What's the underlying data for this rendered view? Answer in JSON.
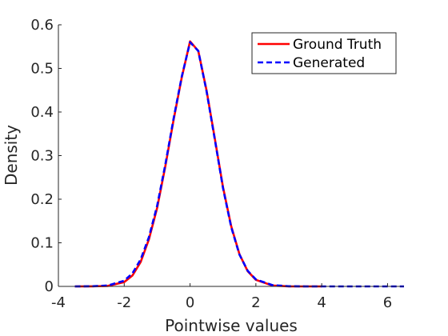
{
  "chart_data": {
    "type": "line",
    "xlabel": "Pointwise values",
    "ylabel": "Density",
    "xlim": [
      -4,
      6.5
    ],
    "ylim": [
      0,
      0.6
    ],
    "xticks": [
      -4,
      -2,
      0,
      2,
      4,
      6
    ],
    "yticks": [
      0,
      0.1,
      0.2,
      0.3,
      0.4,
      0.5,
      0.6
    ],
    "grid": false,
    "legend_position": "top-right",
    "series": [
      {
        "name": "Ground Truth",
        "color": "#ff0000",
        "style": "solid",
        "x": [
          -3.5,
          -3.0,
          -2.5,
          -2.0,
          -1.75,
          -1.5,
          -1.25,
          -1.0,
          -0.75,
          -0.5,
          -0.25,
          0.0,
          0.25,
          0.5,
          0.75,
          1.0,
          1.25,
          1.5,
          1.75,
          2.0,
          2.5,
          3.0,
          3.5,
          4.0
        ],
        "y": [
          0.0,
          0.0001,
          0.001,
          0.01,
          0.025,
          0.056,
          0.108,
          0.18,
          0.276,
          0.382,
          0.48,
          0.562,
          0.54,
          0.45,
          0.34,
          0.228,
          0.138,
          0.074,
          0.035,
          0.015,
          0.002,
          0.0002,
          0.0,
          0.0
        ]
      },
      {
        "name": "Generated",
        "color": "#0000ff",
        "style": "dashed",
        "x": [
          -3.5,
          -3.0,
          -2.5,
          -2.0,
          -1.75,
          -1.5,
          -1.25,
          -1.0,
          -0.75,
          -0.5,
          -0.25,
          0.0,
          0.25,
          0.5,
          0.75,
          1.0,
          1.25,
          1.5,
          1.75,
          2.0,
          2.5,
          3.0,
          3.5,
          4.0,
          5.0,
          6.5
        ],
        "y": [
          0.0,
          0.0003,
          0.002,
          0.013,
          0.03,
          0.062,
          0.113,
          0.185,
          0.28,
          0.385,
          0.482,
          0.56,
          0.54,
          0.448,
          0.338,
          0.226,
          0.136,
          0.073,
          0.036,
          0.016,
          0.003,
          0.0004,
          0.0,
          0.0,
          0.0,
          0.0
        ]
      }
    ]
  }
}
